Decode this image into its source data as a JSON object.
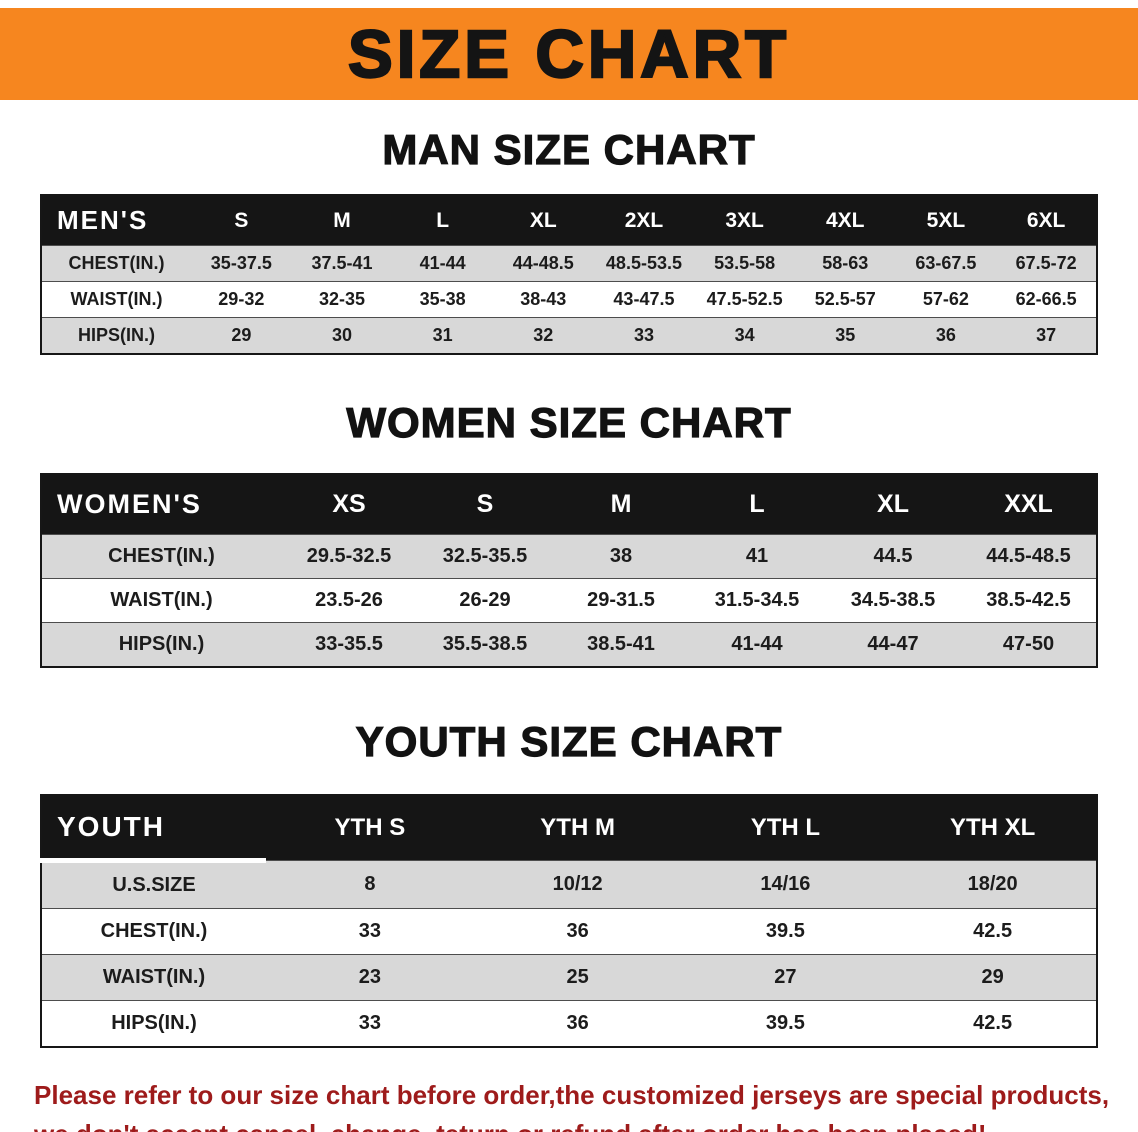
{
  "banner": {
    "title": "SIZE CHART",
    "bg_color": "#f6861f"
  },
  "colors": {
    "table_header_bg": "#151515",
    "table_header_text": "#ffffff",
    "row_stripe": "#d8d8d8",
    "notice_text": "#9e1b1b"
  },
  "chart_data": [
    {
      "type": "table",
      "title": "MAN SIZE CHART",
      "columns": [
        "MEN'S",
        "S",
        "M",
        "L",
        "XL",
        "2XL",
        "3XL",
        "4XL",
        "5XL",
        "6XL"
      ],
      "rows": [
        [
          "CHEST(IN.)",
          "35-37.5",
          "37.5-41",
          "41-44",
          "44-48.5",
          "48.5-53.5",
          "53.5-58",
          "58-63",
          "63-67.5",
          "67.5-72"
        ],
        [
          "WAIST(IN.)",
          "29-32",
          "32-35",
          "35-38",
          "38-43",
          "43-47.5",
          "47.5-52.5",
          "52.5-57",
          "57-62",
          "62-66.5"
        ],
        [
          "HIPS(IN.)",
          "29",
          "30",
          "31",
          "32",
          "33",
          "34",
          "35",
          "36",
          "37"
        ]
      ]
    },
    {
      "type": "table",
      "title": "WOMEN SIZE CHART",
      "columns": [
        "WOMEN'S",
        "XS",
        "S",
        "M",
        "L",
        "XL",
        "XXL"
      ],
      "rows": [
        [
          "CHEST(IN.)",
          "29.5-32.5",
          "32.5-35.5",
          "38",
          "41",
          "44.5",
          "44.5-48.5"
        ],
        [
          "WAIST(IN.)",
          "23.5-26",
          "26-29",
          "29-31.5",
          "31.5-34.5",
          "34.5-38.5",
          "38.5-42.5"
        ],
        [
          "HIPS(IN.)",
          "33-35.5",
          "35.5-38.5",
          "38.5-41",
          "41-44",
          "44-47",
          "47-50"
        ]
      ]
    },
    {
      "type": "table",
      "title": "YOUTH SIZE CHART",
      "columns": [
        "YOUTH",
        "YTH S",
        "YTH M",
        "YTH L",
        "YTH XL"
      ],
      "rows": [
        [
          "U.S.SIZE",
          "8",
          "10/12",
          "14/16",
          "18/20"
        ],
        [
          "CHEST(IN.)",
          "33",
          "36",
          "39.5",
          "42.5"
        ],
        [
          "WAIST(IN.)",
          "23",
          "25",
          "27",
          "29"
        ],
        [
          "HIPS(IN.)",
          "33",
          "36",
          "39.5",
          "42.5"
        ]
      ]
    }
  ],
  "footer": {
    "line1": "Please refer to our size chart before order,the customized jerseys are special products,",
    "line2": "we don't accept cancel, change, teturn or refund after order has been placed!"
  }
}
